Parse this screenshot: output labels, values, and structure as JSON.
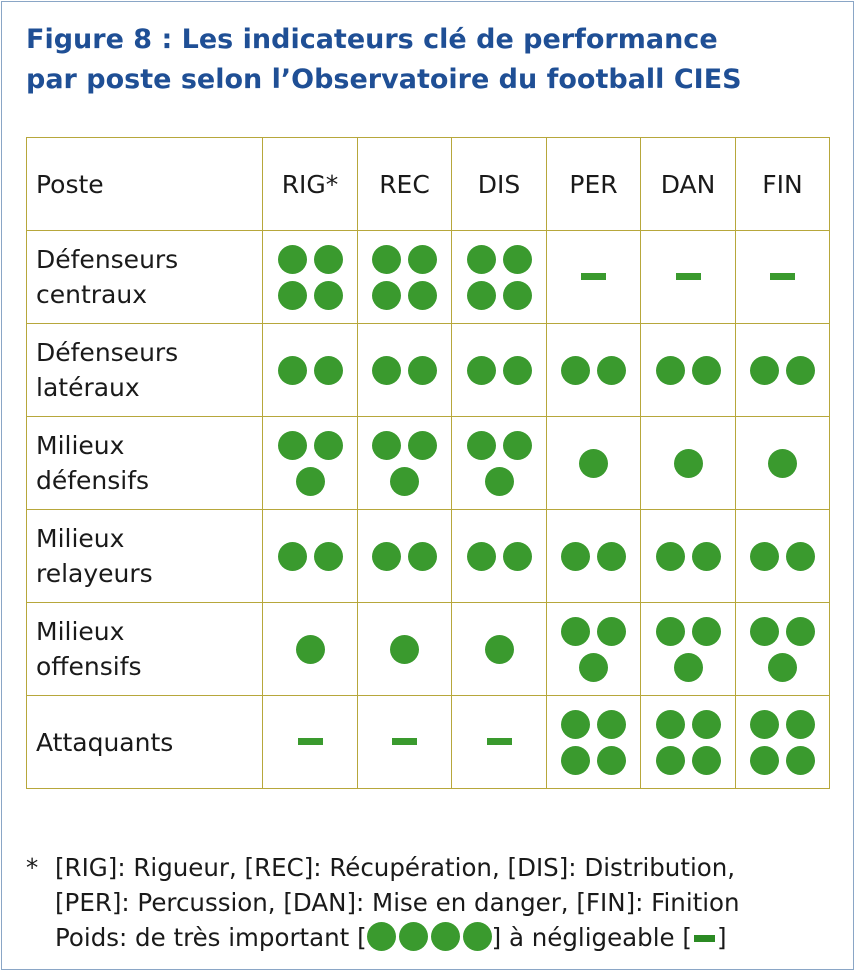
{
  "title": {
    "line1": "Figure 8 : Les indicateurs clé de performance",
    "line2": "par poste selon l’Observatoire du football CIES"
  },
  "table": {
    "headers": [
      "Poste",
      "RIG*",
      "REC",
      "DIS",
      "PER",
      "DAN",
      "FIN"
    ],
    "rows": [
      {
        "poste_line1": "Défenseurs",
        "poste_line2": "centraux",
        "ratings": [
          4,
          4,
          4,
          0,
          0,
          0
        ]
      },
      {
        "poste_line1": "Défenseurs",
        "poste_line2": "latéraux",
        "ratings": [
          2,
          2,
          2,
          2,
          2,
          2
        ]
      },
      {
        "poste_line1": "Milieux",
        "poste_line2": "défensifs",
        "ratings": [
          3,
          3,
          3,
          1,
          1,
          1
        ]
      },
      {
        "poste_line1": "Milieux",
        "poste_line2": "relayeurs",
        "ratings": [
          2,
          2,
          2,
          2,
          2,
          2
        ]
      },
      {
        "poste_line1": "Milieux",
        "poste_line2": "offensifs",
        "ratings": [
          1,
          1,
          1,
          3,
          3,
          3
        ]
      },
      {
        "poste_line1": "Attaquants",
        "poste_line2": "",
        "ratings": [
          0,
          0,
          0,
          4,
          4,
          4
        ]
      }
    ]
  },
  "footnote": {
    "star": "*",
    "line1": "[RIG]: Rigueur, [REC]: Récupération, [DIS]: Distribution,",
    "line2": "[PER]: Percussion, [DAN]: Mise en danger, [FIN]: Finition",
    "line3_prefix": "Poids: de très important [",
    "line3_mid": "] à négligeable [",
    "line3_suffix": "]"
  },
  "colors": {
    "title": "#1f4f95",
    "grid": "#b7a73b",
    "dot": "#3a9a2e",
    "frame": "#8aa6c6"
  },
  "icons": {
    "rating_dot": "filled-circle",
    "negligible": "horizontal-dash"
  }
}
